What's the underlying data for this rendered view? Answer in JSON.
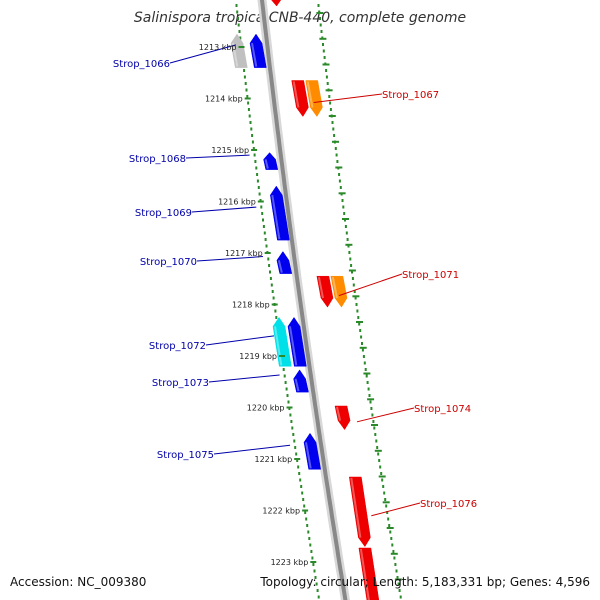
{
  "title": "Salinispora tropica CNB-440, complete genome",
  "footer": {
    "accession": "Accession: NC_009380",
    "topology": "Topology: circular; Length: 5,183,331 bp; Genes: 4,596"
  },
  "colors": {
    "forward_gene": "#0000ee",
    "reverse_gene": "#ee0000",
    "forward_rna": "#00e0e8",
    "reverse_rna": "#ff8c00",
    "pseudo": "#c0c0c0",
    "backbone": "#888888",
    "ticks": "#2a8a2a",
    "forward_label": "#0000aa",
    "reverse_label": "#cc0000"
  },
  "scale": [
    {
      "label": "1213 kbp",
      "kb": 1213
    },
    {
      "label": "1214 kbp",
      "kb": 1214
    },
    {
      "label": "1215 kbp",
      "kb": 1215
    },
    {
      "label": "1216 kbp",
      "kb": 1216
    },
    {
      "label": "1217 kbp",
      "kb": 1217
    },
    {
      "label": "1218 kbp",
      "kb": 1218
    },
    {
      "label": "1219 kbp",
      "kb": 1219
    },
    {
      "label": "1220 kbp",
      "kb": 1220
    },
    {
      "label": "1221 kbp",
      "kb": 1221
    },
    {
      "label": "1222 kbp",
      "kb": 1222
    },
    {
      "label": "1223 kbp",
      "kb": 1223
    }
  ],
  "genes": [
    {
      "name": "Strop_1066",
      "strand": "+",
      "start": 1212.75,
      "end": 1213.4,
      "track": "outer",
      "kind": "cds",
      "companion": {
        "kind": "pseudo"
      }
    },
    {
      "name": "Strop_1067",
      "strand": "-",
      "start": 1213.65,
      "end": 1214.35,
      "track": "outer",
      "kind": "cds",
      "companion": {
        "kind": "rna"
      }
    },
    {
      "name": "Strop_1068",
      "strand": "+",
      "start": 1215.05,
      "end": 1215.38,
      "track": "inner",
      "kind": "cds"
    },
    {
      "name": "Strop_1069",
      "strand": "+",
      "start": 1215.7,
      "end": 1216.75,
      "track": "outer",
      "kind": "cds"
    },
    {
      "name": "Strop_1070",
      "strand": "+",
      "start": 1216.97,
      "end": 1217.4,
      "track": "inner",
      "kind": "cds"
    },
    {
      "name": "Strop_1071",
      "strand": "-",
      "start": 1217.45,
      "end": 1218.05,
      "track": "outer",
      "kind": "cds",
      "companion": {
        "kind": "rna"
      }
    },
    {
      "name": "Strop_1072",
      "strand": "+",
      "start": 1218.25,
      "end": 1219.2,
      "track": "inner",
      "kind": "cds",
      "companion": {
        "kind": "rna"
      }
    },
    {
      "name": "Strop_1073",
      "strand": "+",
      "start": 1219.27,
      "end": 1219.7,
      "track": "inner",
      "kind": "cds"
    },
    {
      "name": "Strop_1074",
      "strand": "-",
      "start": 1219.97,
      "end": 1220.43,
      "track": "outer",
      "kind": "cds"
    },
    {
      "name": "Strop_1075",
      "strand": "+",
      "start": 1220.5,
      "end": 1221.2,
      "track": "inner",
      "kind": "cds"
    },
    {
      "name": "Strop_1076",
      "strand": "-",
      "start": 1221.35,
      "end": 1222.7,
      "track": "outer",
      "kind": "cds"
    }
  ]
}
